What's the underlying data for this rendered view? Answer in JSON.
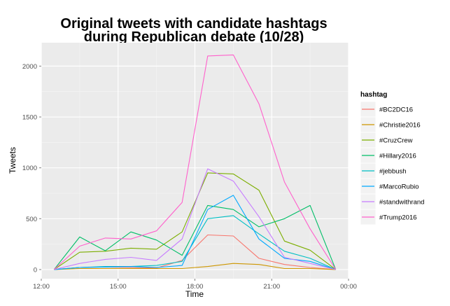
{
  "chart_data": {
    "type": "line",
    "title_line1": "Original tweets with candidate hashtags",
    "title_line2": "during Republican debate (10/28)",
    "xlabel": "Time",
    "ylabel": "Tweets",
    "legend_title": "hashtag",
    "legend_position": "right",
    "grid": true,
    "xlim": [
      "12:00",
      "00:00"
    ],
    "ylim": [
      -90,
      2230
    ],
    "x_ticks": [
      "12:00",
      "15:00",
      "18:00",
      "21:00",
      "00:00"
    ],
    "y_ticks": [
      0,
      500,
      1000,
      1500,
      2000
    ],
    "x": [
      "12:30",
      "13:30",
      "14:30",
      "15:30",
      "16:30",
      "17:30",
      "18:30",
      "19:30",
      "20:30",
      "21:30",
      "22:30",
      "23:30"
    ],
    "series": [
      {
        "name": "#BC2DC16",
        "color": "#F8766D",
        "values": [
          0,
          20,
          25,
          20,
          15,
          90,
          340,
          330,
          110,
          50,
          20,
          0
        ]
      },
      {
        "name": "#Christie2016",
        "color": "#CD9600",
        "values": [
          0,
          10,
          10,
          10,
          10,
          10,
          30,
          60,
          50,
          10,
          10,
          0
        ]
      },
      {
        "name": "#CruzCrew",
        "color": "#7CAE00",
        "values": [
          0,
          170,
          180,
          210,
          200,
          370,
          950,
          940,
          780,
          280,
          190,
          0
        ]
      },
      {
        "name": "#Hillary2016",
        "color": "#00BE67",
        "values": [
          0,
          320,
          185,
          370,
          290,
          140,
          630,
          590,
          420,
          500,
          630,
          0
        ]
      },
      {
        "name": "#jebbush",
        "color": "#00BFC4",
        "values": [
          0,
          20,
          30,
          30,
          40,
          80,
          500,
          530,
          350,
          180,
          110,
          0
        ]
      },
      {
        "name": "#MarcoRubio",
        "color": "#00A9FF",
        "values": [
          0,
          20,
          25,
          30,
          20,
          40,
          590,
          730,
          300,
          110,
          80,
          0
        ]
      },
      {
        "name": "#standwithrand",
        "color": "#C77CFF",
        "values": [
          0,
          60,
          100,
          120,
          90,
          300,
          990,
          870,
          520,
          120,
          60,
          0
        ]
      },
      {
        "name": "#Trump2016",
        "color": "#FF61CC",
        "values": [
          0,
          230,
          310,
          300,
          380,
          660,
          2100,
          2110,
          1630,
          860,
          400,
          0
        ]
      }
    ]
  }
}
